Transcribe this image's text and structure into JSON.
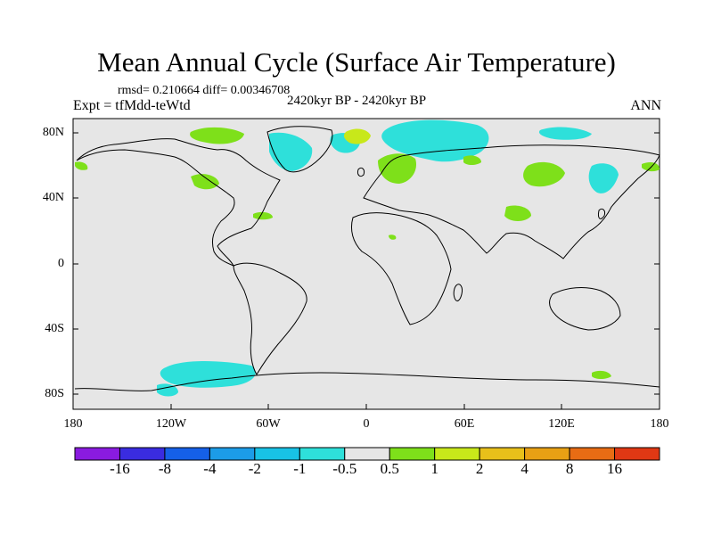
{
  "title": "Mean Annual Cycle (Surface Air Temperature)",
  "stats": "rmsd= 0.210664 diff= 0.00346708",
  "experiment": "Expt = tfMdd-teWtd",
  "period": "2420kyr BP - 2420kyr BP",
  "season": "ANN",
  "lat_labels": [
    "80N",
    "40N",
    "0",
    "40S",
    "80S"
  ],
  "lon_labels": [
    "180",
    "120W",
    "60W",
    "0",
    "60E",
    "120E",
    "180"
  ],
  "colorbar": {
    "labels": [
      "-16",
      "-8",
      "-4",
      "-2",
      "-1",
      "-0.5",
      "0.5",
      "1",
      "2",
      "4",
      "8",
      "16"
    ],
    "colors": [
      "#8a1be0",
      "#3a2ce0",
      "#1560e8",
      "#1c9ce8",
      "#18c2e6",
      "#2ee0da",
      "#e6e6e6",
      "#7ee01a",
      "#c8e81a",
      "#e8c01a",
      "#e8a014",
      "#e86c14",
      "#e03814"
    ]
  },
  "colors": {
    "land_background": "#e6e6e6",
    "coast": "#000000"
  }
}
